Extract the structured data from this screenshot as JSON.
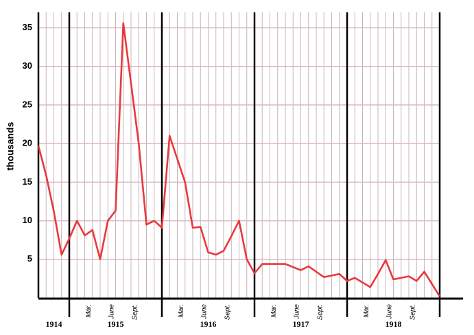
{
  "chart_data": {
    "type": "line",
    "y_label": "thousands",
    "categories": [
      null,
      null,
      null,
      null,
      null,
      null,
      "Mar.",
      null,
      null,
      "June",
      null,
      null,
      "Sept.",
      null,
      null,
      null,
      null,
      null,
      "Mar.",
      null,
      null,
      "June",
      null,
      null,
      "Sept.",
      null,
      null,
      null,
      null,
      null,
      "Mar.",
      null,
      null,
      "June",
      null,
      null,
      "Sept.",
      null,
      null,
      null,
      null,
      null,
      "Mar.",
      null,
      null,
      "June",
      null,
      null,
      "Sept.",
      null,
      null,
      null,
      null
    ],
    "year_labels": [
      "1914",
      "1915",
      "1916",
      "1917",
      "1918"
    ],
    "values": [
      19.7,
      15.9,
      11.2,
      5.6,
      7.7,
      10,
      8.1,
      8.8,
      5,
      10,
      11.3,
      35.6,
      27.8,
      20,
      9.5,
      10,
      9.1,
      21,
      18,
      15,
      9.1,
      9.2,
      5.9,
      5.6,
      6.1,
      8,
      10,
      5,
      3.2,
      4.4,
      4.4,
      4.4,
      4.4,
      4,
      3.6,
      4.1,
      3.4,
      2.7,
      2.9,
      3.1,
      2.2,
      2.6,
      2,
      1.4,
      3.1,
      4.9,
      2.4,
      2.6,
      2.8,
      2.2,
      3.4,
      1.8,
      0.2
    ],
    "color": "#e8383d",
    "ylim": [
      0,
      37
    ],
    "yticks": [
      5,
      10,
      15,
      20,
      25,
      30,
      35
    ],
    "grid": true
  }
}
